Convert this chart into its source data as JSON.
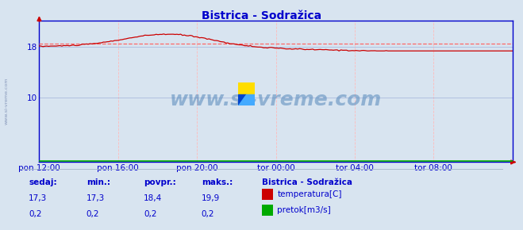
{
  "title": "Bistrica - Sodražica",
  "bg_color": "#d8e4f0",
  "plot_bg_color": "#d8e4f0",
  "grid_color_v": "#ffbbbb",
  "grid_color_h": "#aabbdd",
  "temp_color": "#cc0000",
  "flow_color": "#00aa00",
  "avg_line_color": "#ff6666",
  "axis_color": "#0000cc",
  "text_color": "#0000cc",
  "x_tick_labels": [
    "pon 12:00",
    "pon 16:00",
    "pon 20:00",
    "tor 00:00",
    "tor 04:00",
    "tor 08:00"
  ],
  "x_tick_positions": [
    0.0,
    0.1667,
    0.3333,
    0.5,
    0.6667,
    0.8333
  ],
  "y_ticks": [
    10,
    18
  ],
  "ylim": [
    0,
    22.0
  ],
  "xlim": [
    0,
    1
  ],
  "temp_avg": 18.4,
  "watermark": "www.si-vreme.com",
  "legend_title": "Bistrica - Sodražica",
  "legend_items": [
    "temperatura[C]",
    "pretok[m3/s]"
  ],
  "legend_colors": [
    "#cc0000",
    "#00aa00"
  ],
  "footer_labels": [
    "sedaj:",
    "min.:",
    "povpr.:",
    "maks.:"
  ],
  "footer_temp": [
    "17,3",
    "17,3",
    "18,4",
    "19,9"
  ],
  "footer_flow": [
    "0,2",
    "0,2",
    "0,2",
    "0,2"
  ]
}
